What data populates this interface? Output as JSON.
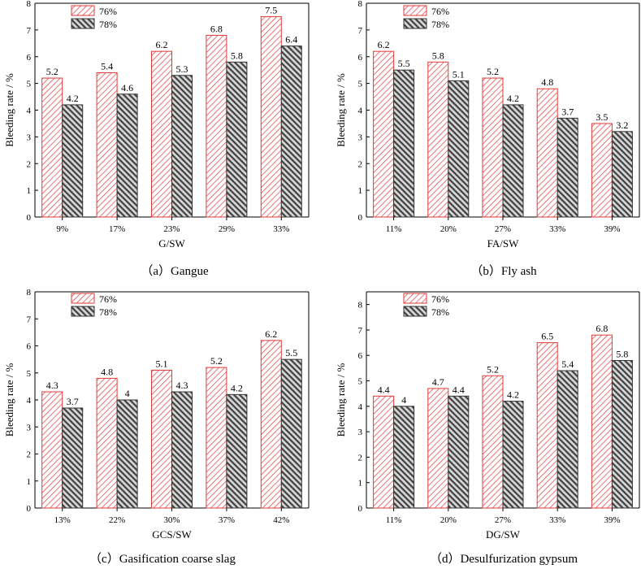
{
  "legend": {
    "series_a": "76%",
    "series_b": "78%"
  },
  "colors": {
    "series_a": "#e03a3a",
    "series_b": "#333333",
    "axis": "#000000"
  },
  "chart_data": [
    {
      "type": "bar",
      "caption": "（a）Gangue",
      "xlabel": "G/SW",
      "ylabel": "Bleeding rate / %",
      "ylim": [
        0,
        8
      ],
      "yticks": [
        0,
        1,
        2,
        3,
        4,
        5,
        6,
        7,
        8
      ],
      "categories": [
        "9%",
        "17%",
        "23%",
        "29%",
        "33%"
      ],
      "series": [
        {
          "name": "76%",
          "values": [
            5.2,
            5.4,
            6.2,
            6.8,
            7.5
          ],
          "labels": [
            "5.2",
            "5.4",
            "6.2",
            "6.8",
            "7.5"
          ]
        },
        {
          "name": "78%",
          "values": [
            4.2,
            4.6,
            5.3,
            5.8,
            6.4
          ],
          "labels": [
            "4.2",
            "4.6",
            "5.3",
            "5.8",
            "6.4"
          ]
        }
      ]
    },
    {
      "type": "bar",
      "caption": "（b）Fly ash",
      "xlabel": "FA/SW",
      "ylabel": "Bleeding rate / %",
      "ylim": [
        0,
        8
      ],
      "yticks": [
        0,
        1,
        2,
        3,
        4,
        5,
        6,
        7,
        8
      ],
      "categories": [
        "11%",
        "20%",
        "27%",
        "33%",
        "39%"
      ],
      "series": [
        {
          "name": "76%",
          "values": [
            6.2,
            5.8,
            5.2,
            4.8,
            3.5
          ],
          "labels": [
            "6.2",
            "5.8",
            "5.2",
            "4.8",
            "3.5"
          ]
        },
        {
          "name": "78%",
          "values": [
            5.5,
            5.1,
            4.2,
            3.7,
            3.2
          ],
          "labels": [
            "5.5",
            "5.1",
            "4.2",
            "3.7",
            "3.2"
          ]
        }
      ]
    },
    {
      "type": "bar",
      "caption": "（c）Gasification coarse slag",
      "xlabel": "GCS/SW",
      "ylabel": "Bleeding rate / %",
      "ylim": [
        0,
        8
      ],
      "yticks": [
        0,
        1,
        2,
        3,
        4,
        5,
        6,
        7,
        8
      ],
      "categories": [
        "13%",
        "22%",
        "30%",
        "37%",
        "42%"
      ],
      "series": [
        {
          "name": "76%",
          "values": [
            4.3,
            4.8,
            5.1,
            5.2,
            6.2
          ],
          "labels": [
            "4.3",
            "4.8",
            "5.1",
            "5.2",
            "6.2"
          ]
        },
        {
          "name": "78%",
          "values": [
            3.7,
            4.0,
            4.3,
            4.2,
            5.5
          ],
          "labels": [
            "3.7",
            "4",
            "4.3",
            "4.2",
            "5.5"
          ]
        }
      ]
    },
    {
      "type": "bar",
      "caption": "（d）Desulfurization gypsum",
      "xlabel": "DG/SW",
      "ylabel": "Bleeding rate / %",
      "ylim": [
        0,
        8.5
      ],
      "yticks": [
        0,
        1,
        2,
        3,
        4,
        5,
        6,
        7,
        8
      ],
      "categories": [
        "11%",
        "20%",
        "27%",
        "33%",
        "39%"
      ],
      "series": [
        {
          "name": "76%",
          "values": [
            4.4,
            4.7,
            5.2,
            6.5,
            6.8
          ],
          "labels": [
            "4.4",
            "4.7",
            "5.2",
            "6.5",
            "6.8"
          ]
        },
        {
          "name": "78%",
          "values": [
            4.0,
            4.4,
            4.2,
            5.4,
            5.8
          ],
          "labels": [
            "4",
            "4.4",
            "4.2",
            "5.4",
            "5.8"
          ]
        }
      ]
    }
  ]
}
